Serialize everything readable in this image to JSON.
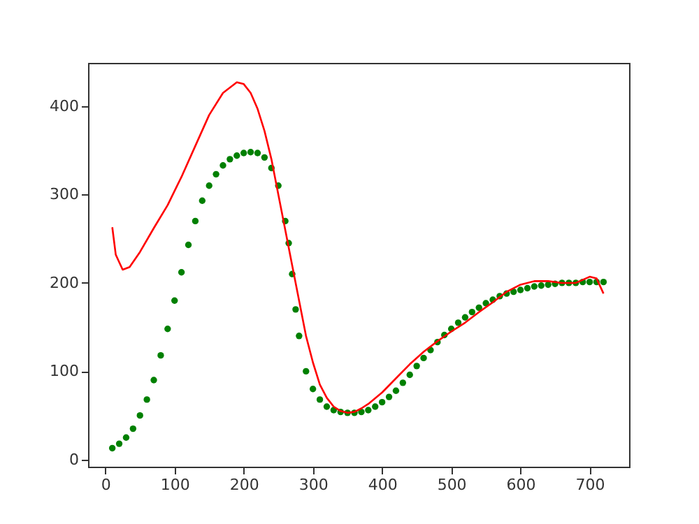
{
  "chart_data": {
    "type": "scatter",
    "xlim": [
      -25,
      757
    ],
    "ylim": [
      -8,
      449
    ],
    "xticks": [
      0,
      100,
      200,
      300,
      400,
      500,
      600,
      700
    ],
    "yticks": [
      0,
      100,
      200,
      300,
      400
    ],
    "grid": false,
    "series": [
      {
        "marker": "circle",
        "color": "#008000",
        "x": [
          10,
          20,
          30,
          40,
          50,
          60,
          70,
          80,
          90,
          100,
          110,
          120,
          130,
          140,
          150,
          160,
          170,
          180,
          190,
          200,
          210,
          220,
          230,
          240,
          250,
          260,
          265,
          270,
          275,
          280,
          290,
          300,
          310,
          320,
          330,
          340,
          350,
          360,
          370,
          380,
          390,
          400,
          410,
          420,
          430,
          440,
          450,
          460,
          470,
          480,
          490,
          500,
          510,
          520,
          530,
          540,
          550,
          560,
          570,
          580,
          590,
          600,
          610,
          620,
          630,
          640,
          650,
          660,
          670,
          680,
          690,
          700,
          710,
          720
        ],
        "values": [
          13,
          18,
          25,
          35,
          50,
          68,
          90,
          118,
          148,
          180,
          212,
          243,
          270,
          293,
          310,
          323,
          333,
          340,
          344,
          347,
          348,
          347,
          342,
          330,
          310,
          270,
          245,
          210,
          170,
          140,
          100,
          80,
          68,
          60,
          56,
          54,
          53,
          53,
          54,
          56,
          60,
          65,
          71,
          78,
          87,
          96,
          106,
          115,
          124,
          133,
          141,
          148,
          155,
          161,
          167,
          172,
          177,
          181,
          185,
          188,
          190,
          192,
          194,
          196,
          197,
          198,
          199,
          200,
          200,
          200,
          201,
          201,
          201,
          201
        ]
      },
      {
        "type": "line",
        "marker": "none",
        "color": "#ff0000",
        "x": [
          10,
          15,
          25,
          35,
          50,
          70,
          90,
          110,
          130,
          150,
          170,
          190,
          200,
          210,
          220,
          230,
          240,
          250,
          260,
          270,
          280,
          290,
          300,
          310,
          320,
          330,
          340,
          350,
          360,
          370,
          380,
          400,
          420,
          440,
          460,
          480,
          500,
          520,
          540,
          560,
          580,
          600,
          620,
          640,
          660,
          680,
          700,
          710,
          720
        ],
        "values": [
          263,
          232,
          215,
          218,
          235,
          262,
          288,
          320,
          355,
          390,
          415,
          427,
          425,
          415,
          397,
          372,
          340,
          300,
          260,
          220,
          180,
          140,
          110,
          85,
          70,
          60,
          55,
          53,
          54,
          58,
          63,
          76,
          92,
          108,
          122,
          134,
          145,
          155,
          167,
          178,
          190,
          198,
          202,
          202,
          200,
          200,
          207,
          205,
          188
        ]
      }
    ]
  }
}
